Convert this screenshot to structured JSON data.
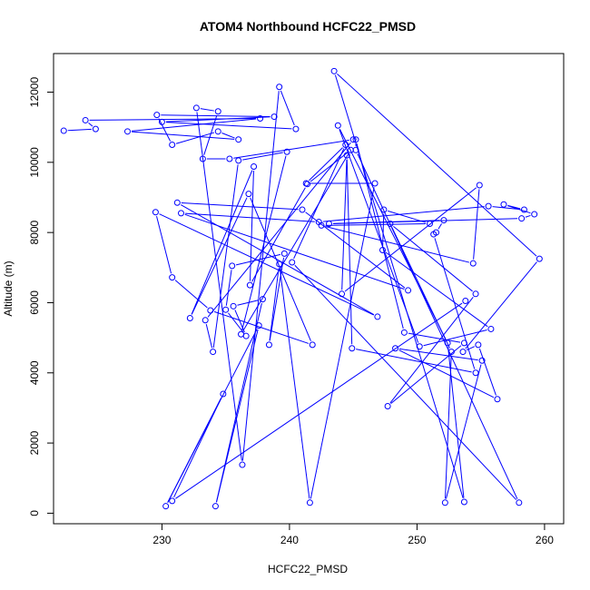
{
  "chart_data": {
    "type": "scatter",
    "title": "ATOM4 Northbound HCFC22_PMSD",
    "xlabel": "HCFC22_PMSD",
    "ylabel": "Altitude (m)",
    "xlim": [
      221.5,
      261.5
    ],
    "ylim": [
      -300,
      13100
    ],
    "x_ticks": [
      230,
      240,
      250,
      260
    ],
    "y_ticks": [
      0,
      2000,
      4000,
      6000,
      8000,
      10000,
      12000
    ],
    "color": "#0000ff",
    "grid": false,
    "legend": "none",
    "series": [
      {
        "style": "line-with-open-circles",
        "points": [
          [
            222.3,
            10900
          ],
          [
            224.8,
            10950
          ],
          [
            224.0,
            11200
          ],
          [
            237.7,
            11250
          ],
          [
            227.3,
            10880
          ],
          [
            236.0,
            10650
          ],
          [
            234.4,
            10880
          ],
          [
            230.8,
            10500
          ],
          [
            229.6,
            11350
          ],
          [
            238.8,
            11300
          ],
          [
            230.0,
            11150
          ],
          [
            240.5,
            10950
          ],
          [
            239.2,
            12150
          ],
          [
            236.3,
            1380
          ],
          [
            232.7,
            11550
          ],
          [
            234.4,
            11450
          ],
          [
            233.2,
            10100
          ],
          [
            235.3,
            10100
          ],
          [
            245.0,
            10650
          ],
          [
            233.4,
            5500
          ],
          [
            234.0,
            4600
          ],
          [
            236.0,
            10050
          ],
          [
            239.8,
            10300
          ],
          [
            236.2,
            5100
          ],
          [
            244.8,
            10350
          ],
          [
            241.4,
            9380
          ],
          [
            236.9,
            6500
          ],
          [
            237.2,
            9880
          ],
          [
            232.2,
            5560
          ],
          [
            236.8,
            9100
          ],
          [
            241.8,
            4800
          ],
          [
            233.8,
            5780
          ],
          [
            230.8,
            6720
          ],
          [
            229.5,
            8580
          ],
          [
            246.9,
            5600
          ],
          [
            231.2,
            8850
          ],
          [
            241.0,
            8650
          ],
          [
            249.3,
            6350
          ],
          [
            231.5,
            8550
          ],
          [
            242.3,
            8300
          ],
          [
            255.6,
            8750
          ],
          [
            258.4,
            8650
          ],
          [
            256.8,
            8800
          ],
          [
            259.2,
            8520
          ],
          [
            258.2,
            8400
          ],
          [
            243.1,
            8250
          ],
          [
            252.1,
            8350
          ],
          [
            251.5,
            8000
          ],
          [
            251.3,
            7950
          ],
          [
            254.6,
            4000
          ],
          [
            244.9,
            4700
          ],
          [
            244.5,
            10200
          ],
          [
            244.1,
            6250
          ],
          [
            254.9,
            9350
          ],
          [
            254.4,
            7120
          ],
          [
            242.5,
            8200
          ],
          [
            251.0,
            8250
          ],
          [
            247.4,
            8650
          ],
          [
            247.3,
            7500
          ],
          [
            255.8,
            5250
          ],
          [
            250.2,
            4750
          ],
          [
            243.8,
            11050
          ],
          [
            252.4,
            4850
          ],
          [
            253.7,
            320
          ],
          [
            243.5,
            12600
          ],
          [
            259.6,
            7250
          ],
          [
            253.6,
            4600
          ],
          [
            254.8,
            4800
          ],
          [
            256.3,
            3250
          ],
          [
            248.3,
            4700
          ],
          [
            255.1,
            4350
          ],
          [
            252.2,
            300
          ],
          [
            252.7,
            4600
          ],
          [
            247.9,
            8250
          ],
          [
            254.6,
            6250
          ],
          [
            247.7,
            3050
          ],
          [
            253.7,
            4850
          ],
          [
            249.0,
            5150
          ],
          [
            245.2,
            10650
          ],
          [
            245.2,
            10350
          ],
          [
            258.0,
            300
          ],
          [
            240.2,
            7150
          ],
          [
            244.4,
            10500
          ],
          [
            241.3,
            9400
          ],
          [
            246.7,
            9400
          ],
          [
            241.6,
            300
          ],
          [
            239.2,
            7100
          ],
          [
            238.4,
            4800
          ],
          [
            239.6,
            7400
          ],
          [
            235.5,
            7050
          ],
          [
            235.0,
            5800
          ],
          [
            236.6,
            5050
          ],
          [
            235.6,
            5900
          ],
          [
            237.9,
            6100
          ],
          [
            234.2,
            200
          ],
          [
            237.6,
            5350
          ],
          [
            230.3,
            200
          ],
          [
            234.8,
            3400
          ],
          [
            230.8,
            350
          ],
          [
            253.8,
            6050
          ]
        ]
      }
    ]
  }
}
